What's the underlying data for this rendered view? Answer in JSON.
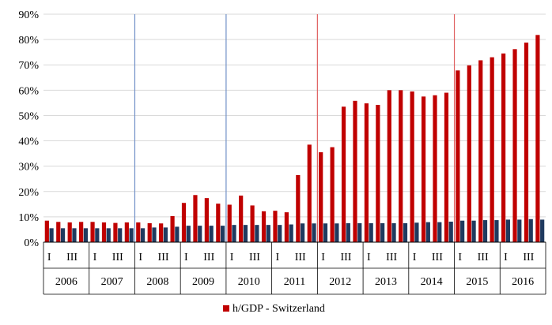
{
  "chart_data": {
    "type": "bar",
    "title": "",
    "xlabel": "",
    "ylabel": "",
    "ylim": [
      0,
      0.9
    ],
    "y_tick_values": [
      0,
      0.1,
      0.2,
      0.3,
      0.4,
      0.5,
      0.6,
      0.7,
      0.8,
      0.9
    ],
    "y_tick_labels": [
      "0%",
      "10%",
      "20%",
      "30%",
      "40%",
      "50%",
      "60%",
      "70%",
      "80%",
      "90%"
    ],
    "grid": true,
    "legend_position": "bottom",
    "years": [
      "2006",
      "2007",
      "2008",
      "2009",
      "2010",
      "2011",
      "2012",
      "2013",
      "2014",
      "2015",
      "2016"
    ],
    "quarter_labels": [
      "I",
      "III"
    ],
    "categories": [
      "2006 I",
      "2006 II",
      "2006 III",
      "2006 IV",
      "2007 I",
      "2007 II",
      "2007 III",
      "2007 IV",
      "2008 I",
      "2008 II",
      "2008 III",
      "2008 IV",
      "2009 I",
      "2009 II",
      "2009 III",
      "2009 IV",
      "2010 I",
      "2010 II",
      "2010 III",
      "2010 IV",
      "2011 I",
      "2011 II",
      "2011 III",
      "2011 IV",
      "2012 I",
      "2012 II",
      "2012 III",
      "2012 IV",
      "2013 I",
      "2013 II",
      "2013 III",
      "2013 IV",
      "2014 I",
      "2014 II",
      "2014 III",
      "2014 IV",
      "2015 I",
      "2015 II",
      "2015 III",
      "2015 IV",
      "2016 I",
      "2016 II",
      "2016 III",
      "2016 IV"
    ],
    "series": [
      {
        "name": "h/GDP - Switzerland",
        "color": "#c00000",
        "values": [
          0.085,
          0.08,
          0.078,
          0.08,
          0.08,
          0.078,
          0.076,
          0.078,
          0.078,
          0.075,
          0.074,
          0.103,
          0.155,
          0.186,
          0.174,
          0.152,
          0.148,
          0.184,
          0.145,
          0.122,
          0.124,
          0.118,
          0.265,
          0.385,
          0.355,
          0.375,
          0.535,
          0.558,
          0.548,
          0.542,
          0.6,
          0.6,
          0.595,
          0.575,
          0.58,
          0.59,
          0.678,
          0.698,
          0.718,
          0.73,
          0.745,
          0.762,
          0.788,
          0.818
        ]
      },
      {
        "name": "",
        "color": "#1f3a5f",
        "values": [
          0.055,
          0.055,
          0.055,
          0.055,
          0.055,
          0.055,
          0.055,
          0.055,
          0.055,
          0.058,
          0.058,
          0.061,
          0.065,
          0.065,
          0.065,
          0.065,
          0.068,
          0.068,
          0.068,
          0.068,
          0.068,
          0.07,
          0.074,
          0.074,
          0.074,
          0.074,
          0.075,
          0.075,
          0.075,
          0.075,
          0.075,
          0.075,
          0.077,
          0.079,
          0.079,
          0.081,
          0.085,
          0.085,
          0.087,
          0.087,
          0.089,
          0.089,
          0.091,
          0.089
        ]
      }
    ],
    "reference_lines": [
      {
        "after_category_index": 7,
        "color": "#6f8fc7"
      },
      {
        "after_category_index": 15,
        "color": "#6f8fc7"
      },
      {
        "after_category_index": 23,
        "color": "#e06060"
      },
      {
        "after_category_index": 35,
        "color": "#e06060"
      }
    ],
    "legend": {
      "label": "h/GDP - Switzerland",
      "color": "#c00000"
    }
  }
}
